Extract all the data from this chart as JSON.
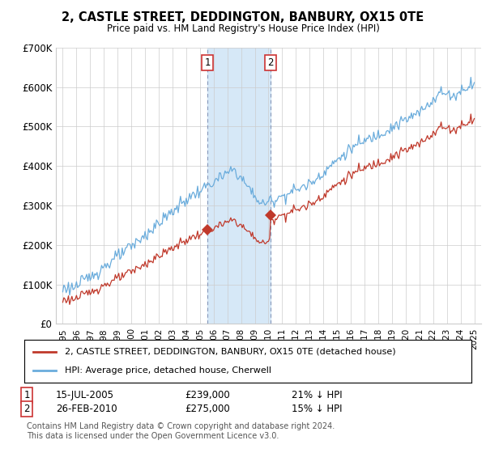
{
  "title": "2, CASTLE STREET, DEDDINGTON, BANBURY, OX15 0TE",
  "subtitle": "Price paid vs. HM Land Registry's House Price Index (HPI)",
  "ylim": [
    0,
    700000
  ],
  "yticks": [
    0,
    100000,
    200000,
    300000,
    400000,
    500000,
    600000,
    700000
  ],
  "ytick_labels": [
    "£0",
    "£100K",
    "£200K",
    "£300K",
    "£400K",
    "£500K",
    "£600K",
    "£700K"
  ],
  "hpi_color": "#6aacdc",
  "price_color": "#c0392b",
  "vline_color": "#aaaacc",
  "span_color": "#d6e8f7",
  "legend_label_price": "2, CASTLE STREET, DEDDINGTON, BANBURY, OX15 0TE (detached house)",
  "legend_label_hpi": "HPI: Average price, detached house, Cherwell",
  "annotation1_date": "15-JUL-2005",
  "annotation1_price": "£239,000",
  "annotation1_pct": "21% ↓ HPI",
  "annotation2_date": "26-FEB-2010",
  "annotation2_price": "£275,000",
  "annotation2_pct": "15% ↓ HPI",
  "footer": "Contains HM Land Registry data © Crown copyright and database right 2024.\nThis data is licensed under the Open Government Licence v3.0.",
  "vline1_x": 2005.54,
  "vline2_x": 2010.15,
  "sale1_x": 2005.54,
  "sale1_y": 239000,
  "sale2_x": 2010.15,
  "sale2_y": 275000,
  "hpi_start_year": 1995,
  "hpi_end_year": 2025,
  "price_start_year": 1995,
  "xlim_left": 1994.5,
  "xlim_right": 2025.5
}
